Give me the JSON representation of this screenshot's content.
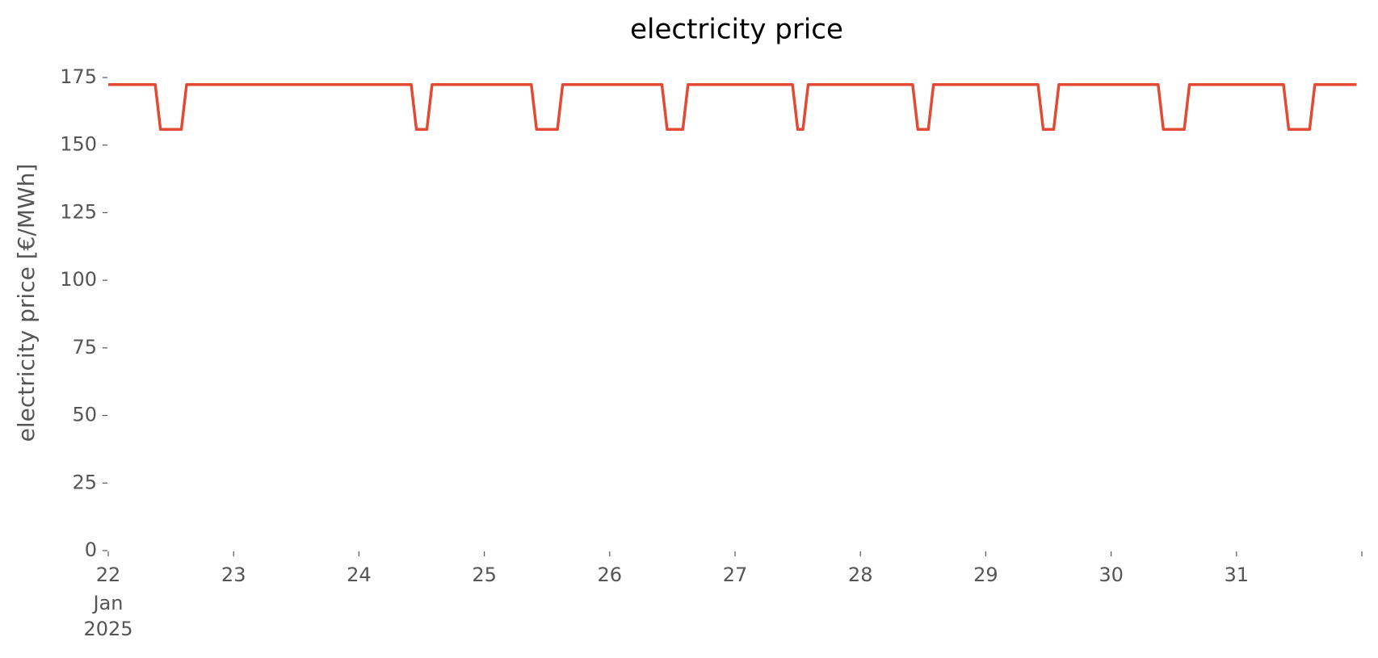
{
  "chart_data": {
    "type": "line",
    "title": "electricity price",
    "y_label": "electricity price [€/MWh]",
    "x_sublabels": [
      "Jan",
      "2025"
    ],
    "x": [
      22,
      22.375,
      22.4167,
      22.5833,
      22.625,
      24.4167,
      24.4583,
      24.5417,
      24.5833,
      25.375,
      25.4167,
      25.5833,
      25.625,
      26.4167,
      26.4583,
      26.5833,
      26.625,
      27.4583,
      27.5,
      27.5417,
      27.5833,
      28.4167,
      28.4583,
      28.5417,
      28.5833,
      29.4167,
      29.4583,
      29.5417,
      29.5833,
      30.375,
      30.4167,
      30.5833,
      30.625,
      31.375,
      31.4167,
      31.5833,
      31.625,
      31.9583
    ],
    "series": [
      {
        "color": "#e24a33",
        "values": [
          172.4,
          172.4,
          155.8,
          155.8,
          172.4,
          172.4,
          155.8,
          155.8,
          172.4,
          172.4,
          155.8,
          155.8,
          172.4,
          172.4,
          155.8,
          155.8,
          172.4,
          172.4,
          155.8,
          155.8,
          172.4,
          172.4,
          155.8,
          155.8,
          172.4,
          172.4,
          155.8,
          155.8,
          172.4,
          172.4,
          155.8,
          155.8,
          172.4,
          172.4,
          155.8,
          155.8,
          172.4,
          172.4
        ]
      }
    ],
    "xlim": [
      22,
      32
    ],
    "xticks": [
      22,
      23,
      24,
      25,
      26,
      27,
      28,
      29,
      30,
      31,
      {
        "value": 32,
        "label": null
      }
    ],
    "ylim": [
      0,
      175
    ],
    "yticks": [
      0,
      25,
      50,
      75,
      100,
      125,
      150,
      175
    ],
    "grid": false
  }
}
